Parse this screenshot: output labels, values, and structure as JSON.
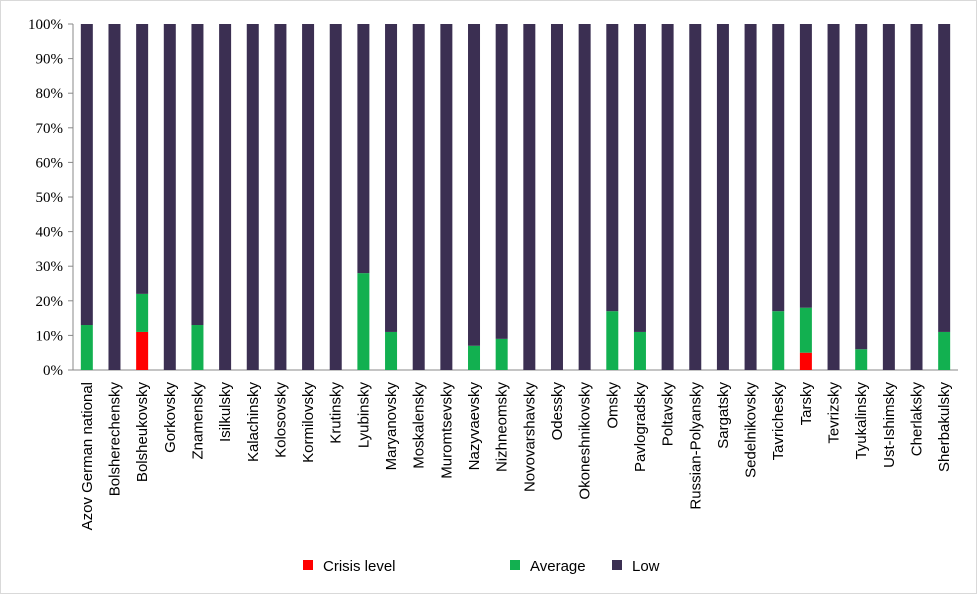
{
  "chart_data": {
    "type": "stacked_bar",
    "categories": [
      "Azov German national",
      "Bolsherechensky",
      "Bolsheukovsky",
      "Gorkovsky",
      "Znamensky",
      "Isilkulsky",
      "Kalachinsky",
      "Kolosovsky",
      "Kormilovsky",
      "Krutinsky",
      "Lyubinsky",
      "Maryanovsky",
      "Moskalensky",
      "Muromtsevsky",
      "Nazyvaevsky",
      "Nizhneomsky",
      "Novovarshavsky",
      "Odessky",
      "Okoneshnikovsky",
      "Omsky",
      "Pavlogradsky",
      "Poltavsky",
      "Russian-Polyansky",
      "Sargatsky",
      "Sedelnikovsky",
      "Tavrichesky",
      "Tarsky",
      "Tevrizsky",
      "Tyukalinsky",
      "Ust-Ishimsky",
      "Cherlaksky",
      "Sherbakulsky"
    ],
    "series": [
      {
        "name": "Crisis level",
        "color": "#ff0000",
        "values": [
          0,
          0,
          11,
          0,
          0,
          0,
          0,
          0,
          0,
          0,
          0,
          0,
          0,
          0,
          0,
          0,
          0,
          0,
          0,
          0,
          0,
          0,
          0,
          0,
          0,
          0,
          5,
          0,
          0,
          0,
          0,
          0
        ]
      },
      {
        "name": "Average",
        "color": "#12b050",
        "values": [
          13,
          0,
          11,
          0,
          13,
          0,
          0,
          0,
          0,
          0,
          28,
          11,
          0,
          0,
          7,
          9,
          0,
          0,
          0,
          17,
          11,
          0,
          0,
          0,
          0,
          17,
          13,
          0,
          6,
          0,
          0,
          11
        ]
      },
      {
        "name": "Low",
        "color": "#3b2f52",
        "values": [
          87,
          100,
          78,
          100,
          87,
          100,
          100,
          100,
          100,
          100,
          72,
          89,
          100,
          100,
          93,
          91,
          100,
          100,
          100,
          83,
          89,
          100,
          100,
          100,
          100,
          83,
          82,
          100,
          94,
          100,
          100,
          89
        ]
      }
    ],
    "ylim": [
      0,
      100
    ],
    "yticks": [
      {
        "value": 0,
        "label": "0%"
      },
      {
        "value": 10,
        "label": "10%"
      },
      {
        "value": 20,
        "label": "20%"
      },
      {
        "value": 30,
        "label": "30%"
      },
      {
        "value": 40,
        "label": "40%"
      },
      {
        "value": 50,
        "label": "50%"
      },
      {
        "value": 60,
        "label": "60%"
      },
      {
        "value": 70,
        "label": "70%"
      },
      {
        "value": 80,
        "label": "80%"
      },
      {
        "value": 90,
        "label": "90%"
      },
      {
        "value": 100,
        "label": "100%"
      }
    ],
    "grid": false
  }
}
